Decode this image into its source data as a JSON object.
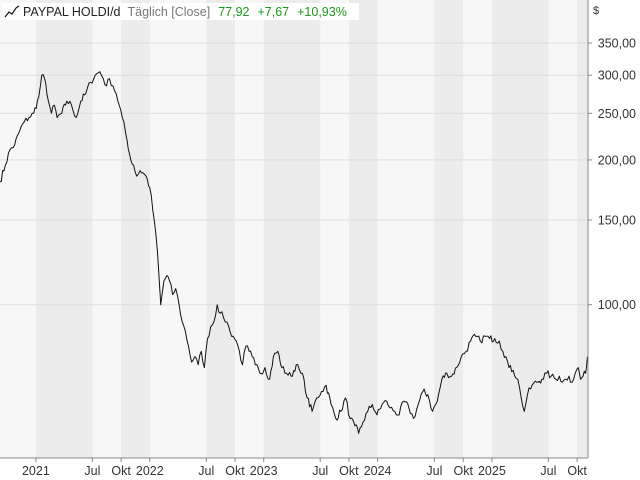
{
  "legend": {
    "name": "PAYPAL HOLDI/d",
    "period": "Täglich [Close]",
    "last": "77,92",
    "change": "+7,67",
    "change_pct": "+10,93%"
  },
  "colors": {
    "line": "#111111",
    "band": "#ececec",
    "plot_bg": "#f7f7f7",
    "grid": "#dddddd",
    "positive": "#1a9a1a"
  },
  "chart_data": {
    "type": "line",
    "yscale": "log",
    "unit": "$",
    "ylim": [
      48,
      430
    ],
    "xlim": [
      "2020-09-08",
      "2025-11-05"
    ],
    "grid": true,
    "legend_position": "top-left",
    "y_ticks": [
      {
        "value": 100,
        "label": "100,00"
      },
      {
        "value": 150,
        "label": "150,00"
      },
      {
        "value": 200,
        "label": "200,00"
      },
      {
        "value": 250,
        "label": "250,00"
      },
      {
        "value": 300,
        "label": "300,00"
      },
      {
        "value": 350,
        "label": "350,00"
      }
    ],
    "x_ticks": [
      {
        "date": "2021-01-01",
        "label": "2021"
      },
      {
        "date": "2021-07-01",
        "label": "Jul"
      },
      {
        "date": "2021-10-01",
        "label": "Okt"
      },
      {
        "date": "2022-01-01",
        "label": "2022"
      },
      {
        "date": "2022-07-01",
        "label": "Jul"
      },
      {
        "date": "2022-10-01",
        "label": "Okt"
      },
      {
        "date": "2023-01-01",
        "label": "2023"
      },
      {
        "date": "2023-07-01",
        "label": "Jul"
      },
      {
        "date": "2023-10-01",
        "label": "Okt"
      },
      {
        "date": "2024-01-01",
        "label": "2024"
      },
      {
        "date": "2024-07-01",
        "label": "Jul"
      },
      {
        "date": "2024-10-01",
        "label": "Okt"
      },
      {
        "date": "2025-01-01",
        "label": "2025"
      },
      {
        "date": "2025-07-01",
        "label": "Jul"
      },
      {
        "date": "2025-10-01",
        "label": "Okt"
      }
    ],
    "series": [
      {
        "x": [
          "2020-09-08",
          "2020-09-25",
          "2020-10-10",
          "2020-10-25",
          "2020-11-10",
          "2020-11-25",
          "2020-12-10",
          "2020-12-25",
          "2021-01-10",
          "2021-01-20",
          "2021-02-01",
          "2021-02-10",
          "2021-02-20",
          "2021-03-01",
          "2021-03-10",
          "2021-03-25",
          "2021-04-10",
          "2021-04-25",
          "2021-05-10",
          "2021-05-25",
          "2021-06-10",
          "2021-06-25",
          "2021-07-10",
          "2021-07-25",
          "2021-08-05",
          "2021-08-15",
          "2021-08-25",
          "2021-09-05",
          "2021-09-15",
          "2021-09-25",
          "2021-10-05",
          "2021-10-20",
          "2021-11-01",
          "2021-11-10",
          "2021-11-20",
          "2021-12-01",
          "2021-12-10",
          "2021-12-20",
          "2022-01-01",
          "2022-01-15",
          "2022-01-25",
          "2022-02-01",
          "2022-02-05",
          "2022-02-15",
          "2022-02-25",
          "2022-03-05",
          "2022-03-15",
          "2022-03-25",
          "2022-04-05",
          "2022-04-15",
          "2022-04-25",
          "2022-05-05",
          "2022-05-15",
          "2022-05-25",
          "2022-06-05",
          "2022-06-15",
          "2022-06-25",
          "2022-07-05",
          "2022-07-15",
          "2022-07-25",
          "2022-08-05",
          "2022-08-15",
          "2022-08-25",
          "2022-09-05",
          "2022-09-15",
          "2022-09-25",
          "2022-10-05",
          "2022-10-15",
          "2022-10-25",
          "2022-11-05",
          "2022-11-15",
          "2022-11-25",
          "2022-12-05",
          "2022-12-20",
          "2023-01-05",
          "2023-01-20",
          "2023-02-01",
          "2023-02-15",
          "2023-02-28",
          "2023-03-15",
          "2023-03-30",
          "2023-04-15",
          "2023-04-30",
          "2023-05-10",
          "2023-05-20",
          "2023-06-05",
          "2023-06-20",
          "2023-07-05",
          "2023-07-20",
          "2023-08-05",
          "2023-08-20",
          "2023-09-05",
          "2023-09-20",
          "2023-10-05",
          "2023-10-20",
          "2023-11-01",
          "2023-11-15",
          "2023-11-30",
          "2023-12-15",
          "2023-12-30",
          "2024-01-15",
          "2024-01-30",
          "2024-02-10",
          "2024-02-25",
          "2024-03-10",
          "2024-03-25",
          "2024-04-10",
          "2024-04-25",
          "2024-05-10",
          "2024-05-25",
          "2024-06-10",
          "2024-06-25",
          "2024-07-10",
          "2024-07-25",
          "2024-08-10",
          "2024-08-25",
          "2024-09-10",
          "2024-09-25",
          "2024-10-10",
          "2024-10-25",
          "2024-11-10",
          "2024-11-25",
          "2024-12-10",
          "2024-12-25",
          "2025-01-10",
          "2025-01-25",
          "2025-02-05",
          "2025-02-15",
          "2025-02-25",
          "2025-03-10",
          "2025-03-25",
          "2025-04-05",
          "2025-04-15",
          "2025-04-25",
          "2025-05-10",
          "2025-05-25",
          "2025-06-10",
          "2025-06-25",
          "2025-07-10",
          "2025-07-25",
          "2025-08-05",
          "2025-08-15",
          "2025-08-25",
          "2025-09-05",
          "2025-09-15",
          "2025-09-25",
          "2025-10-05",
          "2025-10-12",
          "2025-10-20",
          "2025-10-28",
          "2025-11-03"
        ],
        "values": [
          180,
          195,
          210,
          215,
          230,
          240,
          245,
          250,
          270,
          300,
          290,
          265,
          250,
          260,
          245,
          250,
          265,
          260,
          245,
          265,
          275,
          290,
          300,
          305,
          295,
          285,
          295,
          285,
          275,
          260,
          245,
          220,
          200,
          195,
          185,
          190,
          188,
          185,
          175,
          150,
          130,
          110,
          100,
          112,
          115,
          112,
          105,
          108,
          100,
          92,
          88,
          82,
          76,
          78,
          75,
          80,
          74,
          85,
          90,
          92,
          100,
          96,
          94,
          92,
          88,
          86,
          84,
          80,
          75,
          82,
          80,
          78,
          75,
          72,
          74,
          70,
          78,
          80,
          74,
          72,
          71,
          75,
          72,
          70,
          64,
          60,
          64,
          66,
          68,
          62,
          58,
          60,
          64,
          58,
          56,
          54,
          57,
          60,
          62,
          59,
          62,
          63,
          61,
          60,
          59,
          63,
          61,
          58,
          62,
          66,
          65,
          60,
          63,
          70,
          72,
          71,
          74,
          78,
          80,
          84,
          86,
          84,
          86,
          85,
          85,
          84,
          80,
          78,
          74,
          73,
          70,
          64,
          60,
          65,
          68,
          69,
          70,
          72,
          71,
          70,
          71,
          69,
          70,
          71,
          69,
          72,
          74,
          70,
          71,
          72,
          77.92
        ]
      }
    ]
  }
}
